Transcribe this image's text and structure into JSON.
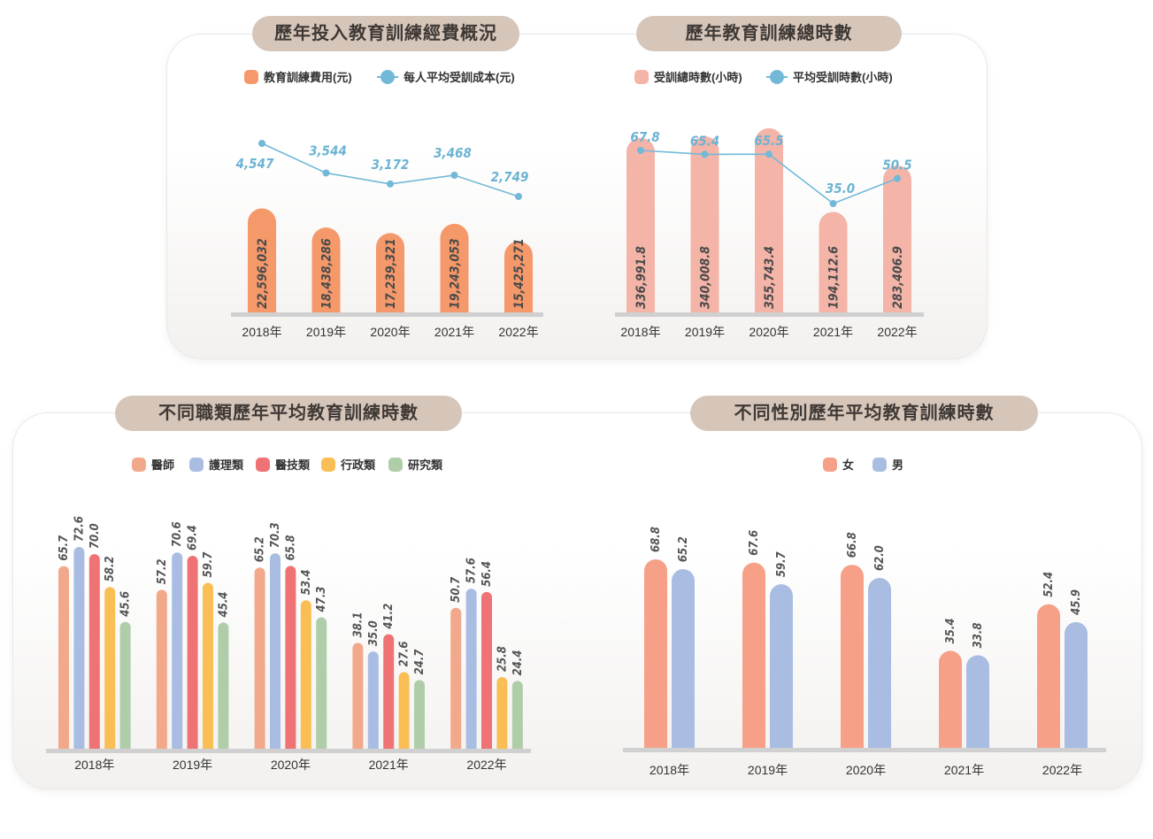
{
  "chart_data": [
    {
      "id": "cost",
      "type": "bar+line",
      "title": "歷年投入教育訓練經費概況",
      "categories": [
        "2018年",
        "2019年",
        "2020年",
        "2021年",
        "2022年"
      ],
      "series": [
        {
          "name": "教育訓練費用(元)",
          "type": "bar",
          "color": "#f5986a",
          "values": [
            22596032,
            18438286,
            17239321,
            19243053,
            15425271
          ],
          "labels": [
            "22,596,032",
            "18,438,286",
            "17,239,321",
            "19,243,053",
            "15,425,271"
          ]
        },
        {
          "name": "每人平均受訓成本(元)",
          "type": "line",
          "color": "#72b9d7",
          "values": [
            4547,
            3544,
            3172,
            3468,
            2749
          ],
          "labels": [
            "4,547",
            "3,544",
            "3,172",
            "3,468",
            "2,749"
          ]
        }
      ],
      "bar_ylim": [
        0,
        25000000
      ],
      "line_ylim": [
        2000,
        5500
      ]
    },
    {
      "id": "hours",
      "type": "bar+line",
      "title": "歷年教育訓練總時數",
      "categories": [
        "2018年",
        "2019年",
        "2020年",
        "2021年",
        "2022年"
      ],
      "series": [
        {
          "name": "受訓總時數(小時)",
          "type": "bar",
          "color": "#f4b4a8",
          "values": [
            336991.8,
            340008.8,
            355743.4,
            194112.6,
            283406.9
          ],
          "labels": [
            "336,991.8",
            "340,008.8",
            "355,743.4",
            "194,112.6",
            "283,406.9"
          ]
        },
        {
          "name": "平均受訓時數(小時)",
          "type": "line",
          "color": "#72b9d7",
          "values": [
            67.8,
            65.4,
            65.5,
            35.0,
            50.5
          ],
          "labels": [
            "67.8",
            "65.4",
            "65.5",
            "35.0",
            "50.5"
          ]
        }
      ],
      "bar_ylim": [
        0,
        400000
      ],
      "line_ylim": [
        20,
        80
      ]
    },
    {
      "id": "job",
      "type": "bar",
      "title": "不同職類歷年平均教育訓練時數",
      "categories": [
        "2018年",
        "2019年",
        "2020年",
        "2021年",
        "2022年"
      ],
      "series": [
        {
          "name": "醫師",
          "color": "#f2a98b",
          "values": [
            65.7,
            57.2,
            65.2,
            38.1,
            50.7
          ]
        },
        {
          "name": "護理類",
          "color": "#a9bde2",
          "values": [
            72.6,
            70.6,
            70.3,
            35.0,
            57.6
          ]
        },
        {
          "name": "醫技類",
          "color": "#ef7374",
          "values": [
            70.0,
            69.4,
            65.8,
            41.2,
            56.4
          ]
        },
        {
          "name": "行政類",
          "color": "#f9bf55",
          "values": [
            58.2,
            59.7,
            53.4,
            27.6,
            25.8
          ]
        },
        {
          "name": "研究類",
          "color": "#afcda8",
          "values": [
            45.6,
            45.4,
            47.3,
            24.7,
            24.4
          ]
        }
      ],
      "ylim": [
        0,
        80
      ]
    },
    {
      "id": "gender",
      "type": "bar",
      "title": "不同性別歷年平均教育訓練時數",
      "categories": [
        "2018年",
        "2019年",
        "2020年",
        "2021年",
        "2022年"
      ],
      "series": [
        {
          "name": "女",
          "color": "#f6a087",
          "values": [
            68.8,
            67.6,
            66.8,
            35.4,
            52.4
          ]
        },
        {
          "name": "男",
          "color": "#a9bde2",
          "values": [
            65.2,
            59.7,
            62.0,
            33.8,
            45.9
          ]
        }
      ],
      "ylim": [
        0,
        80
      ]
    }
  ]
}
